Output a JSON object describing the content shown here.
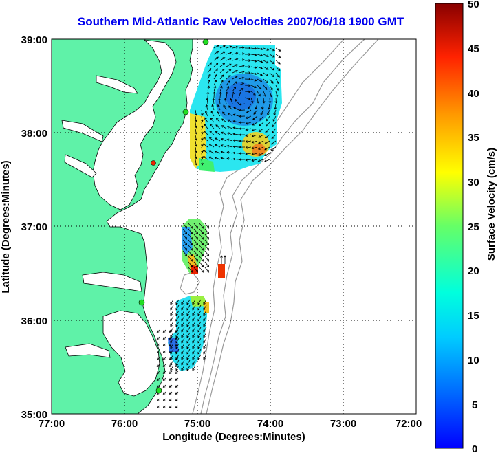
{
  "title": "Southern Mid-Atlantic Raw Velocities 2007/06/18 1900 GMT",
  "map": {
    "x_label": "Longitude (Degrees:Minutes)",
    "y_label": "Latitude (Degrees:Minutes)",
    "x_ticks": [
      "77:00",
      "76:00",
      "75:00",
      "74:00",
      "73:00",
      "72:00"
    ],
    "y_ticks": [
      "39:00",
      "38:00",
      "37:00",
      "36:00",
      "35:00"
    ],
    "lon_range": [
      -77,
      -72
    ],
    "lat_range": [
      35,
      39
    ],
    "grid": "dotted",
    "colors": {
      "land": "#5ff2a8",
      "coastline": "#000000",
      "bathymetry": "#999999",
      "station_marker": "#22dd22",
      "red_marker": "#ee2200"
    }
  },
  "colorbar": {
    "label": "Surface Velocity (cm/s)",
    "ticks": [
      "50",
      "45",
      "40",
      "35",
      "30",
      "25",
      "20",
      "15",
      "10",
      "5",
      "0"
    ],
    "min": 0,
    "max": 50,
    "colormap": "jet"
  }
}
